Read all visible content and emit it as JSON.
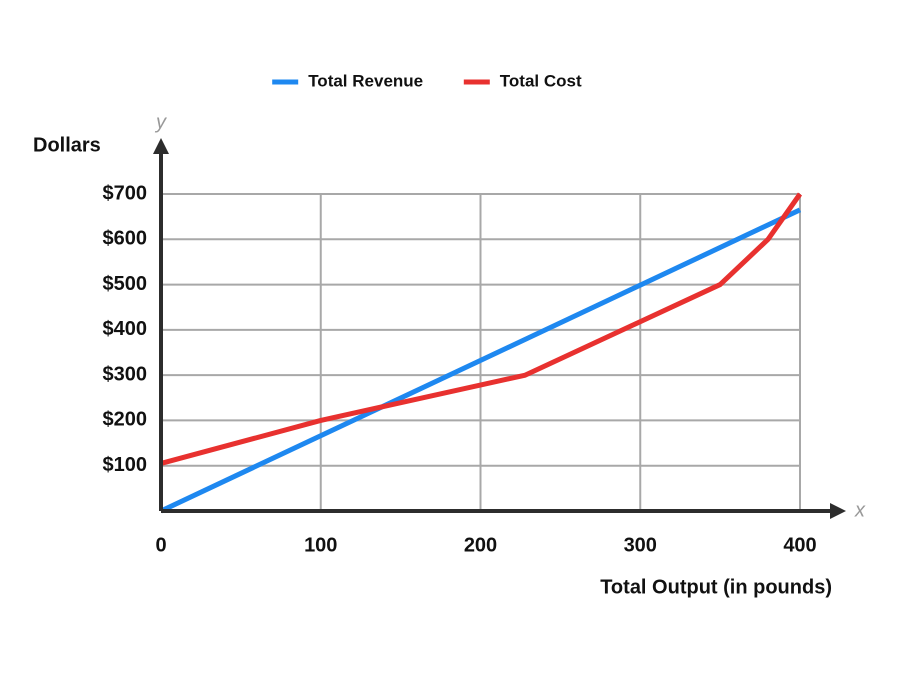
{
  "chart_data": {
    "type": "line",
    "x_label": "Total Output (in pounds)",
    "y_label": "Dollars",
    "x_axis_symbol": "x",
    "y_axis_symbol": "y",
    "xlim": [
      0,
      400
    ],
    "ylim": [
      0,
      700
    ],
    "xticks": [
      0,
      100,
      200,
      300,
      400
    ],
    "yticks": [
      {
        "value": 100,
        "label": "$100"
      },
      {
        "value": 200,
        "label": "$200"
      },
      {
        "value": 300,
        "label": "$300"
      },
      {
        "value": 400,
        "label": "$400"
      },
      {
        "value": 500,
        "label": "$500"
      },
      {
        "value": 600,
        "label": "$600"
      },
      {
        "value": 700,
        "label": "$700"
      }
    ],
    "grid": true,
    "legend": "top",
    "series": [
      {
        "name": "Total Revenue",
        "color": "#1e88f0",
        "x": [
          0,
          400
        ],
        "values": [
          0,
          665
        ]
      },
      {
        "name": "Total Cost",
        "color": "#e8312f",
        "x": [
          0,
          100,
          228,
          350,
          380,
          400
        ],
        "values": [
          105,
          200,
          300,
          500,
          600,
          700
        ]
      }
    ]
  }
}
